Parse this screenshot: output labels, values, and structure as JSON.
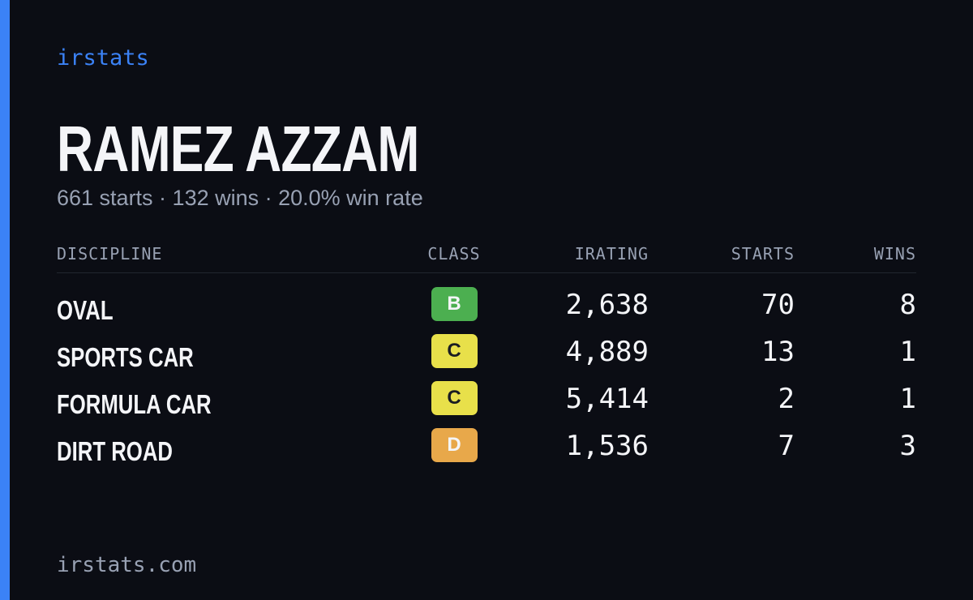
{
  "header": {
    "brand": "irstats",
    "name": "RAMEZ AZZAM",
    "summary": "661 starts · 132 wins · 20.0% win rate"
  },
  "table": {
    "columns": [
      "DISCIPLINE",
      "CLASS",
      "IRATING",
      "STARTS",
      "WINS"
    ],
    "rows": [
      [
        "OVAL",
        "B",
        "2,638",
        "70",
        "8"
      ],
      [
        "SPORTS CAR",
        "C",
        "4,889",
        "13",
        "1"
      ],
      [
        "FORMULA CAR",
        "C",
        "5,414",
        "2",
        "1"
      ],
      [
        "DIRT ROAD",
        "D",
        "1,536",
        "7",
        "3"
      ]
    ]
  },
  "footer": {
    "url": "irstats.com"
  }
}
